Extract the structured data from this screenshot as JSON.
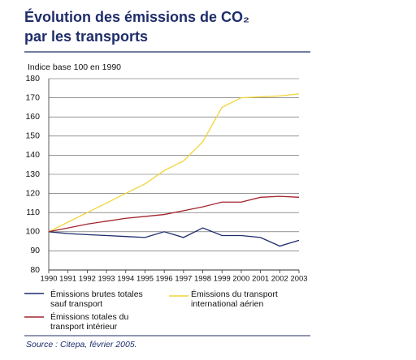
{
  "chart_data": {
    "type": "line",
    "title_lines": [
      "Évolution des émissions de CO₂",
      "par les transports"
    ],
    "y_label": "Indice base 100 en 1990",
    "x": [
      1990,
      1991,
      1992,
      1993,
      1994,
      1995,
      1996,
      1997,
      1998,
      1999,
      2000,
      2001,
      2002,
      2003
    ],
    "xlim": [
      1990,
      2003
    ],
    "xticks": [
      1990,
      1991,
      1992,
      1993,
      1994,
      1995,
      1996,
      1997,
      1998,
      1999,
      2000,
      2001,
      2002,
      2003
    ],
    "ylim": [
      80,
      180
    ],
    "yticks": [
      80,
      90,
      100,
      110,
      120,
      130,
      140,
      150,
      160,
      170,
      180
    ],
    "grid": true,
    "series": [
      {
        "name": "Émissions brutes totales sauf transport",
        "color": "#1f2d6b",
        "values": [
          100,
          99,
          98.5,
          98,
          97.5,
          97,
          100,
          97,
          102,
          98,
          98,
          97,
          92.5,
          95.5
        ]
      },
      {
        "name": "Émissions du transport international aérien",
        "color": "#f2d43a",
        "values": [
          100,
          105,
          110,
          115,
          120,
          125,
          132,
          137,
          147,
          165,
          170,
          170.5,
          171,
          172
        ]
      },
      {
        "name": "Émissions totales du transport intérieur",
        "color": "#a3232e",
        "values": [
          100,
          102,
          104,
          105.5,
          107,
          108,
          109,
          111,
          113,
          115.5,
          115.5,
          118,
          118.5,
          118
        ]
      }
    ],
    "source": "Source : Citepa, février 2005."
  }
}
